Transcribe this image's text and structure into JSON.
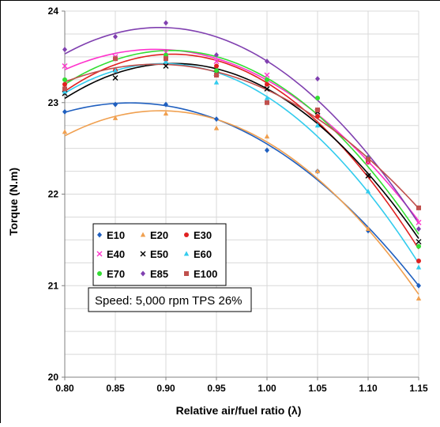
{
  "chart_data": {
    "type": "scatter",
    "xlabel": "Relative air/fuel ratio (λ)",
    "ylabel": "Torque (N.m)",
    "xlim": [
      0.8,
      1.15
    ],
    "ylim": [
      20,
      24
    ],
    "x_ticks": [
      "0.80",
      "0.85",
      "0.90",
      "0.95",
      "1.00",
      "1.05",
      "1.10",
      "1.15"
    ],
    "y_ticks": [
      "20",
      "21",
      "22",
      "23",
      "24"
    ],
    "grid": true,
    "legend_position": "left-middle",
    "annotation": "Speed: 5,000 rpm TPS 26%",
    "x": [
      0.8,
      0.85,
      0.9,
      0.95,
      1.0,
      1.05,
      1.1,
      1.15
    ],
    "series": [
      {
        "name": "E10",
        "marker": "diamond",
        "color": "#1f5fbf",
        "values": [
          22.9,
          22.98,
          22.98,
          22.82,
          22.48,
          22.25,
          21.6,
          21.0
        ]
      },
      {
        "name": "E20",
        "marker": "triangle",
        "color": "#f0a050",
        "values": [
          22.68,
          22.83,
          22.88,
          22.72,
          22.63,
          22.25,
          21.62,
          20.86
        ]
      },
      {
        "name": "E30",
        "marker": "circle",
        "color": "#e02020",
        "values": [
          23.2,
          23.35,
          23.5,
          23.4,
          23.2,
          22.85,
          22.35,
          21.27
        ]
      },
      {
        "name": "E40",
        "marker": "x",
        "color": "#ff33cc",
        "values": [
          23.4,
          23.5,
          23.55,
          23.45,
          23.3,
          22.9,
          22.35,
          21.69
        ]
      },
      {
        "name": "E50",
        "marker": "x",
        "color": "#000000",
        "values": [
          23.1,
          23.27,
          23.4,
          23.32,
          23.15,
          22.9,
          22.2,
          21.48
        ]
      },
      {
        "name": "E60",
        "marker": "triangle",
        "color": "#33ccee",
        "values": [
          23.12,
          23.35,
          23.45,
          23.22,
          23.05,
          22.75,
          22.03,
          21.2
        ]
      },
      {
        "name": "E70",
        "marker": "circle",
        "color": "#33dd33",
        "values": [
          23.25,
          23.48,
          23.52,
          23.35,
          23.25,
          23.05,
          22.4,
          21.43
        ]
      },
      {
        "name": "E85",
        "marker": "diamond",
        "color": "#8040b0",
        "values": [
          23.58,
          23.72,
          23.87,
          23.52,
          23.45,
          23.26,
          22.4,
          21.62
        ]
      },
      {
        "name": "E100",
        "marker": "square",
        "color": "#c0504d",
        "values": [
          23.15,
          23.48,
          23.48,
          23.3,
          23.0,
          22.92,
          22.38,
          21.85
        ]
      }
    ],
    "colors": {
      "grid": "#d9d9d9",
      "axis": "#808080",
      "frame": "#000000"
    }
  }
}
